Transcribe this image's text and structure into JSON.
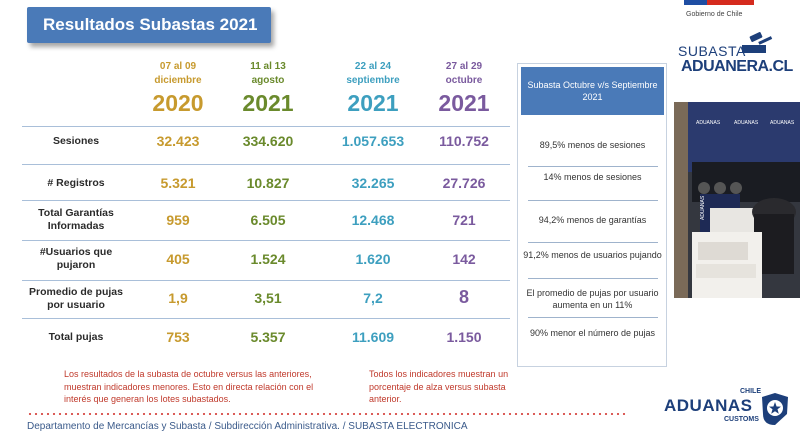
{
  "title": "Resultados Subastas 2021",
  "government": {
    "label": "Gobierno de Chile"
  },
  "logo": {
    "line1": "SUBASTA",
    "line2": "ADUANERA.CL"
  },
  "columns": [
    {
      "period": "07 al 09",
      "month": "diciembre",
      "year": "2020"
    },
    {
      "period": "11 al 13",
      "month": "agosto",
      "year": "2021"
    },
    {
      "period": "22 al 24",
      "month": "septiembre",
      "year": "2021"
    },
    {
      "period": "27 al 29",
      "month": "octubre",
      "year": "2021"
    }
  ],
  "rows": [
    {
      "label": "Sesiones",
      "values": [
        "32.423",
        "334.620",
        "1.057.653",
        "110.752"
      ]
    },
    {
      "label": "# Registros",
      "values": [
        "5.321",
        "10.827",
        "32.265",
        "27.726"
      ]
    },
    {
      "label": "Total Garantías Informadas",
      "values": [
        "959",
        "6.505",
        "12.468",
        "721"
      ]
    },
    {
      "label": "#Usuarios que pujaron",
      "values": [
        "405",
        "1.524",
        "1.620",
        "142"
      ]
    },
    {
      "label": "Promedio de pujas por usuario",
      "values": [
        "1,9",
        "3,51",
        "7,2",
        "8"
      ]
    },
    {
      "label": "Total pujas",
      "values": [
        "753",
        "5.357",
        "11.609",
        "1.150"
      ]
    }
  ],
  "comparison": {
    "header": "Subasta Octubre v/s  Septiembre 2021",
    "items": [
      "89,5% menos de sesiones",
      "14% menos de sesiones",
      "94,2% menos de garantías",
      "91,2% menos de usuarios pujando",
      "El promedio de pujas por usuario aumenta en un 11%",
      "90% menor el número de pujas"
    ]
  },
  "notes": {
    "left": "Los resultados de la subasta de octubre versus las anteriores, muestran indicadores menores. Esto en directa relación con el interés que generan los lotes subastados.",
    "right": "Todos los indicadores muestran un porcentaje de alza versus subasta anterior."
  },
  "footer": "Departamento de Mercancías y Subasta / Subdirección Administrativa. / SUBASTA ELECTRONICA",
  "aduanas": {
    "chile": "CHILE",
    "main": "ADUANAS",
    "customs": "CUSTOMS"
  },
  "colors": {
    "col1": "#c79a2e",
    "col2": "#6a8a2c",
    "col3": "#3d9fbf",
    "col4": "#7a5a9e",
    "accent": "#4a7ab8"
  }
}
